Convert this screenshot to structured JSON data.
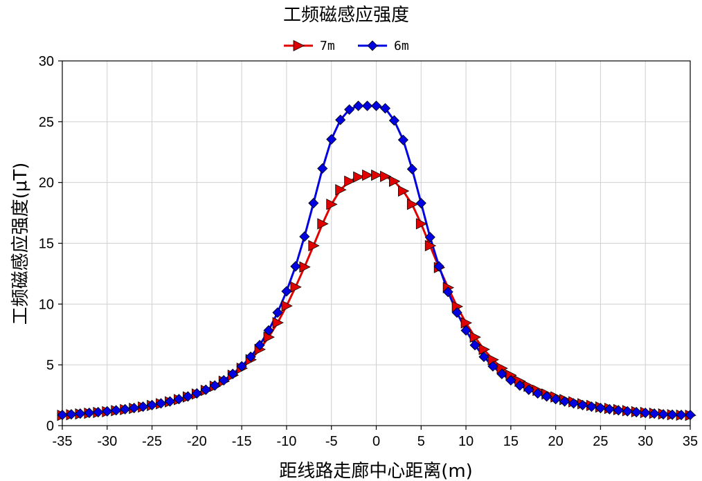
{
  "chart_data": {
    "type": "line",
    "title": "工频磁感应强度",
    "xlabel": "距线路走廊中心距离(m)",
    "ylabel": "工频磁感应强度(μT)",
    "xlim": [
      -35,
      35
    ],
    "ylim": [
      0,
      30
    ],
    "xticks": [
      -35,
      -30,
      -25,
      -20,
      -15,
      -10,
      -5,
      0,
      5,
      10,
      15,
      20,
      25,
      30,
      35
    ],
    "yticks": [
      0,
      5,
      10,
      15,
      20,
      25,
      30
    ],
    "grid": true,
    "legend_position": "top-center",
    "x": [
      -35,
      -34,
      -33,
      -32,
      -31,
      -30,
      -29,
      -28,
      -27,
      -26,
      -25,
      -24,
      -23,
      -22,
      -21,
      -20,
      -19,
      -18,
      -17,
      -16,
      -15,
      -14,
      -13,
      -12,
      -11,
      -10,
      -9,
      -8,
      -7,
      -6,
      -5,
      -4,
      -3,
      -2,
      -1,
      0,
      1,
      2,
      3,
      4,
      5,
      6,
      7,
      8,
      9,
      10,
      11,
      12,
      13,
      14,
      15,
      16,
      17,
      18,
      19,
      20,
      21,
      22,
      23,
      24,
      25,
      26,
      27,
      28,
      29,
      30,
      31,
      32,
      33,
      34,
      35
    ],
    "series": [
      {
        "name": "7m",
        "color": "#e00000",
        "marker": "triangle-right",
        "values": [
          0.85,
          0.9,
          0.96,
          1.02,
          1.08,
          1.15,
          1.23,
          1.32,
          1.42,
          1.53,
          1.66,
          1.8,
          1.96,
          2.14,
          2.36,
          2.6,
          2.9,
          3.24,
          3.65,
          4.14,
          4.72,
          5.42,
          6.27,
          7.28,
          8.47,
          9.85,
          11.4,
          13.05,
          14.8,
          16.6,
          18.2,
          19.4,
          20.1,
          20.45,
          20.6,
          20.6,
          20.5,
          20.1,
          19.3,
          18.2,
          16.6,
          14.8,
          13.0,
          11.35,
          9.8,
          8.45,
          7.28,
          6.27,
          5.42,
          4.72,
          4.14,
          3.65,
          3.24,
          2.9,
          2.6,
          2.36,
          2.14,
          1.96,
          1.8,
          1.66,
          1.53,
          1.42,
          1.32,
          1.23,
          1.15,
          1.08,
          1.02,
          0.96,
          0.9,
          0.86,
          0.85
        ]
      },
      {
        "name": "6m",
        "color": "#0000e0",
        "marker": "diamond",
        "values": [
          0.88,
          0.93,
          0.99,
          1.05,
          1.11,
          1.18,
          1.26,
          1.35,
          1.45,
          1.56,
          1.69,
          1.83,
          1.99,
          2.18,
          2.4,
          2.65,
          2.95,
          3.3,
          3.73,
          4.25,
          4.88,
          5.66,
          6.62,
          7.83,
          9.3,
          11.05,
          13.1,
          15.55,
          18.3,
          21.15,
          23.55,
          25.15,
          26.0,
          26.3,
          26.3,
          26.3,
          26.1,
          25.1,
          23.5,
          21.1,
          18.3,
          15.5,
          13.1,
          11.0,
          9.3,
          7.83,
          6.62,
          5.66,
          4.88,
          4.25,
          3.73,
          3.3,
          2.95,
          2.65,
          2.4,
          2.18,
          1.99,
          1.83,
          1.69,
          1.56,
          1.45,
          1.35,
          1.26,
          1.18,
          1.11,
          1.05,
          0.99,
          0.93,
          0.9,
          0.88,
          0.88
        ]
      }
    ]
  }
}
